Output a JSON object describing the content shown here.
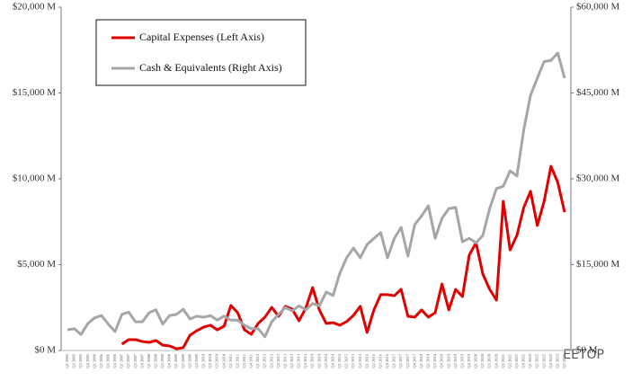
{
  "chart_data": {
    "type": "line",
    "categories": [
      "Q1 2005",
      "Q2 2005",
      "Q3 2005",
      "Q4 2005",
      "Q1 2006",
      "Q2 2006",
      "Q3 2006",
      "Q4 2006",
      "Q1 2007",
      "Q2 2007",
      "Q3 2007",
      "Q4 2007",
      "Q1 2008",
      "Q2 2008",
      "Q3 2008",
      "Q4 2008",
      "Q1 2009",
      "Q2 2009",
      "Q3 2009",
      "Q4 2009",
      "Q1 2010",
      "Q2 2010",
      "Q3 2010",
      "Q4 2010",
      "Q1 2011",
      "Q2 2011",
      "Q3 2011",
      "Q4 2011",
      "Q1 2012",
      "Q2 2012",
      "Q3 2012",
      "Q4 2012",
      "Q1 2013",
      "Q2 2013",
      "Q3 2013",
      "Q4 2013",
      "Q1 2014",
      "Q2 2014",
      "Q3 2014",
      "Q4 2014",
      "Q1 2015",
      "Q2 2015",
      "Q3 2015",
      "Q4 2015",
      "Q1 2016",
      "Q2 2016",
      "Q3 2016",
      "Q4 2016",
      "Q1 2017",
      "Q2 2017",
      "Q3 2017",
      "Q4 2017",
      "Q1 2018",
      "Q2 2018",
      "Q3 2018",
      "Q4 2018",
      "Q1 2019",
      "Q2 2019",
      "Q3 2019",
      "Q4 2019",
      "Q1 2020",
      "Q2 2020",
      "Q3 2020",
      "Q4 2020",
      "Q1 2021",
      "Q2 2021",
      "Q3 2021",
      "Q4 2021",
      "Q1 2022",
      "Q2 2022",
      "Q3 2022",
      "Q4 2022",
      "Q1 2023",
      "Q2 2023"
    ],
    "series": [
      {
        "name": "Capital Expenses (Left Axis)",
        "color": "#e00000",
        "values": [
          null,
          null,
          null,
          null,
          null,
          null,
          null,
          null,
          370,
          630,
          630,
          520,
          470,
          580,
          310,
          260,
          100,
          160,
          890,
          1150,
          1360,
          1470,
          1200,
          1410,
          2620,
          2200,
          1200,
          940,
          1570,
          1940,
          2510,
          1990,
          2570,
          2410,
          1730,
          2460,
          3660,
          2360,
          1570,
          1620,
          1470,
          1680,
          2040,
          2570,
          1050,
          2360,
          3250,
          3250,
          3190,
          3560,
          1990,
          1940,
          2360,
          1940,
          2200,
          3870,
          2360,
          3560,
          3140,
          5550,
          6280,
          4450,
          3560,
          2930,
          8690,
          5860,
          6700,
          8320,
          9270,
          7280,
          8690,
          10730,
          9790,
          8060
        ]
      },
      {
        "name": "Cash & Equivalents (Right Axis)",
        "color": "#a6a6a6",
        "axis": "y2",
        "values": [
          3600,
          3800,
          2800,
          4700,
          5700,
          6100,
          4600,
          3300,
          6300,
          6700,
          5000,
          5000,
          6600,
          7100,
          4600,
          6100,
          6300,
          7200,
          5500,
          6000,
          5800,
          6100,
          5300,
          6000,
          5300,
          5300,
          4400,
          3800,
          3800,
          2400,
          5000,
          6300,
          7500,
          6900,
          7800,
          7100,
          8200,
          7800,
          10200,
          9600,
          13500,
          16200,
          17900,
          16200,
          18500,
          19600,
          20600,
          16200,
          19600,
          21500,
          16500,
          22000,
          23500,
          25300,
          19600,
          23100,
          24800,
          25000,
          19000,
          19600,
          18800,
          20100,
          24800,
          28300,
          28700,
          31400,
          30500,
          38500,
          44600,
          47600,
          50500,
          50700,
          52000,
          47600
        ]
      }
    ],
    "ylim": [
      0,
      20000
    ],
    "yticks": [
      {
        "value": 0,
        "label": "$0 M"
      },
      {
        "value": 5000,
        "label": "$5,000 M"
      },
      {
        "value": 10000,
        "label": "$10,000 M"
      },
      {
        "value": 15000,
        "label": "$15,000 M"
      },
      {
        "value": 20000,
        "label": "$20,000 M"
      }
    ],
    "y2lim": [
      0,
      60000
    ],
    "y2ticks": [
      {
        "value": 0,
        "label": "$0 M"
      },
      {
        "value": 15000,
        "label": "$15,000 M"
      },
      {
        "value": 30000,
        "label": "$30,000 M"
      },
      {
        "value": 45000,
        "label": "$45,000 M"
      },
      {
        "value": 60000,
        "label": "$60,000 M"
      }
    ],
    "grid": false,
    "legend": "top-left",
    "watermark": "EETOP"
  }
}
